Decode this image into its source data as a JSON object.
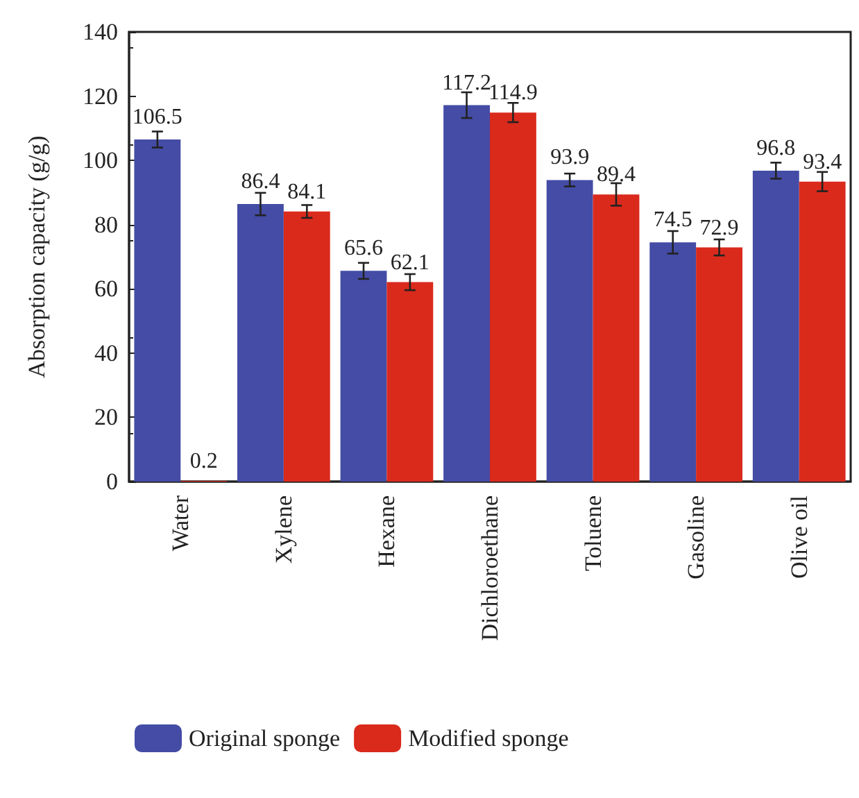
{
  "chart_data": {
    "type": "bar",
    "ylabel": "Absorption capacity (g/g)",
    "categories": [
      "Water",
      "Xylene",
      "Hexane",
      "Dichloroethane",
      "Toluene",
      "Gasoline",
      "Olive oil"
    ],
    "series": [
      {
        "name": "Original sponge",
        "color": "#444ca6",
        "values": [
          106.5,
          86.4,
          65.6,
          117.2,
          93.9,
          74.5,
          96.8
        ],
        "errors": [
          2.5,
          3.5,
          2.5,
          4,
          2,
          3.5,
          2.5
        ]
      },
      {
        "name": "Modified sponge",
        "color": "#da2a1c",
        "values": [
          0.2,
          84.1,
          62.1,
          114.9,
          89.4,
          72.9,
          93.4
        ],
        "errors": [
          null,
          2,
          2.5,
          3,
          3.5,
          2.5,
          3
        ]
      }
    ],
    "ylim": [
      0,
      140
    ],
    "yticks": [
      0,
      20,
      40,
      60,
      80,
      100,
      120,
      140
    ],
    "data_labels": true,
    "grid": false,
    "legend": "bottom left"
  }
}
